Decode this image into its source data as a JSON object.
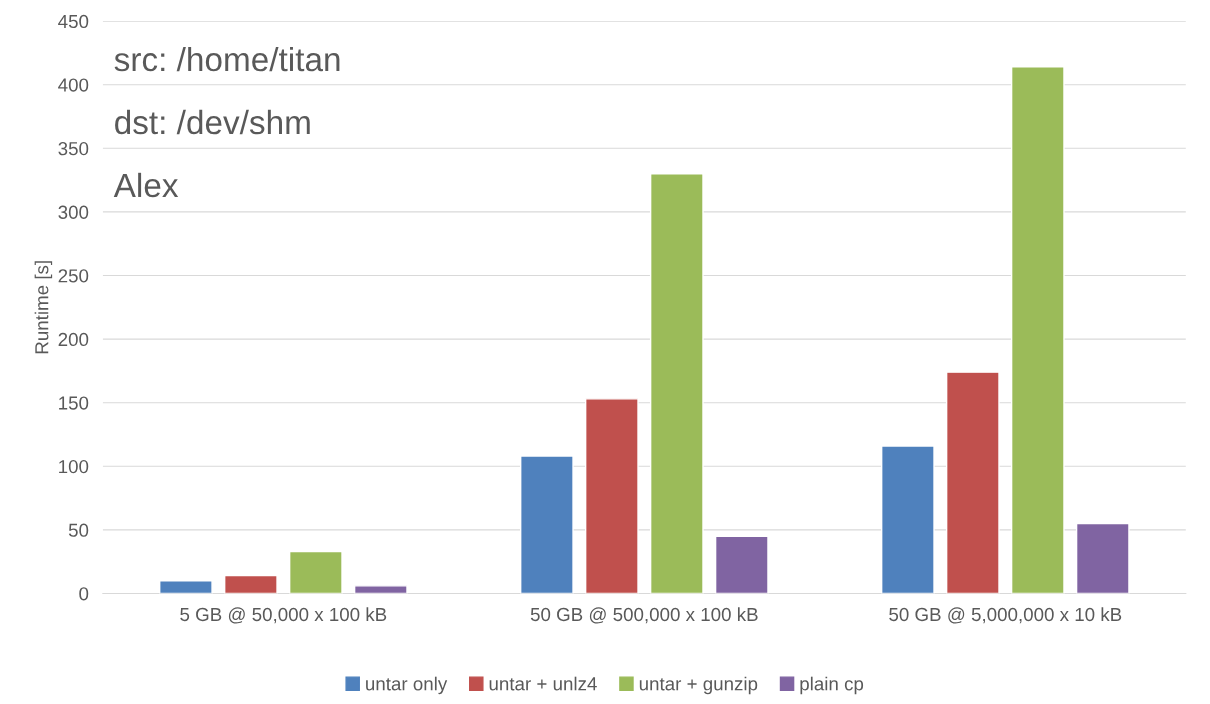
{
  "chart_data": {
    "type": "bar",
    "ylabel": "Runtime [s]",
    "categories": [
      "5 GB @ 50,000 x 100 kB",
      "50 GB @ 500,000 x 100 kB",
      "50 GB @ 5,000,000 x 10 kB"
    ],
    "series": [
      {
        "name": "untar only",
        "color": "#4f81bd",
        "values": [
          10,
          108,
          116
        ]
      },
      {
        "name": "untar + unlz4",
        "color": "#c0504d",
        "values": [
          14,
          153,
          174
        ]
      },
      {
        "name": "untar + gunzip",
        "color": "#9bbb59",
        "values": [
          33,
          330,
          414
        ]
      },
      {
        "name": "plain cp",
        "color": "#8064a2",
        "values": [
          6,
          45,
          55
        ]
      }
    ],
    "ylim": [
      0,
      450
    ],
    "yticks": [
      0,
      50,
      100,
      150,
      200,
      250,
      300,
      350,
      400,
      450
    ],
    "grid": "y",
    "legend": "bottom",
    "annotations": [
      "src: /home/titan",
      "dst: /dev/shm",
      "Alex"
    ]
  }
}
